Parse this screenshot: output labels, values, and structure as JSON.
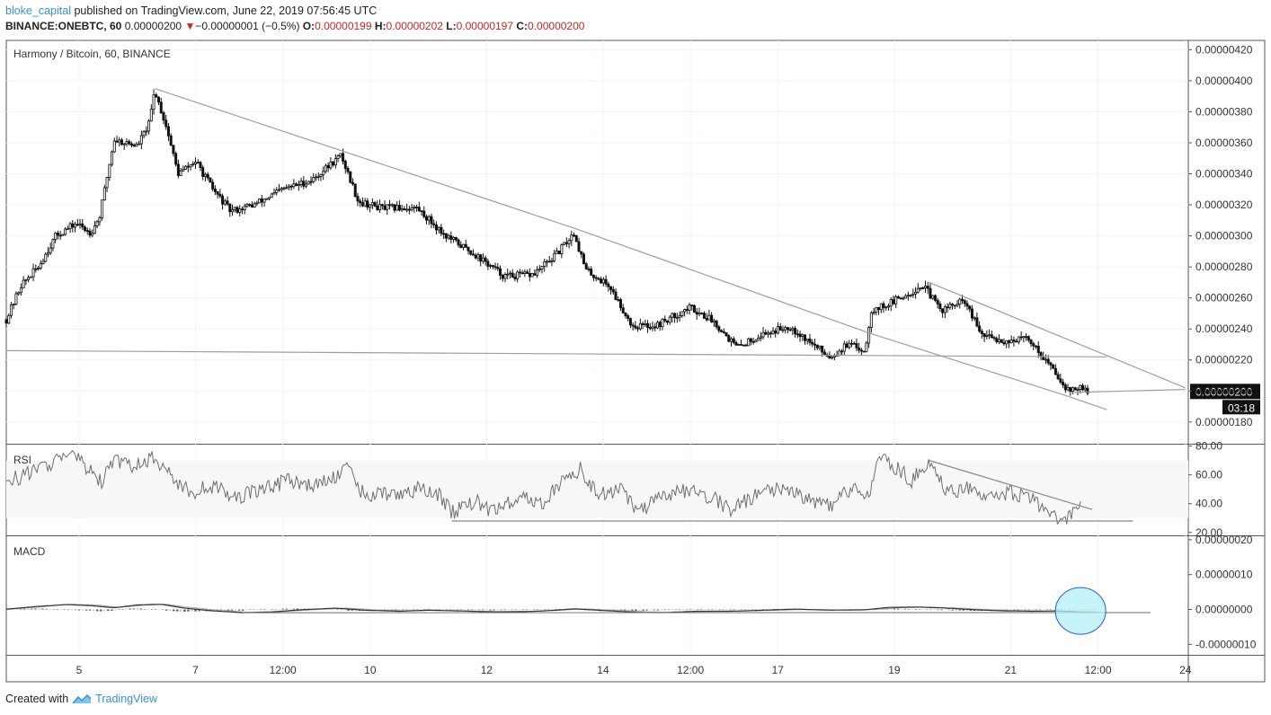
{
  "header": {
    "author": "bloke_capital",
    "published_text": "published on TradingView.com, June 22, 2019 07:56:45 UTC",
    "symbol": "BINANCE:ONEBTC, 60",
    "last_price": "0.00000200",
    "change": "−0.00000001 (−0.5%)",
    "open_label": "O:",
    "open": "0.00000199",
    "high_label": "H:",
    "high": "0.00000202",
    "low_label": "L:",
    "low": "0.00000197",
    "close_label": "C:",
    "close": "0.00000200",
    "down_arrow": "▼"
  },
  "footer": {
    "created_with": "Created with",
    "brand": "TradingView"
  },
  "colors": {
    "candle": "#111111",
    "trendline": "#9e9e9e",
    "rsi_line": "#6e6e6e",
    "macd_line": "#333333",
    "signal_line": "#aaaaaa",
    "hist_dark": "#555b66",
    "hist_light": "#c2c6cf",
    "circle_fill": "#b3f0f7",
    "circle_stroke": "#2a5bd7",
    "price_badge": "#111111"
  },
  "chart_data": [
    {
      "type": "candlestick",
      "title": "Harmony / Bitcoin, 60, BINANCE",
      "y_ticks": [
        "0.00000180",
        "0.00000200",
        "0.00000220",
        "0.00000240",
        "0.00000260",
        "0.00000280",
        "0.00000300",
        "0.00000320",
        "0.00000340",
        "0.00000360",
        "0.00000380",
        "0.00000400",
        "0.00000420"
      ],
      "ylim": [
        1.66e-06,
        4.26e-06
      ],
      "x_ticks": [
        "5",
        "7",
        "12:00",
        "10",
        "12",
        "14",
        "12:00",
        "17",
        "19",
        "21",
        "12:00",
        "24"
      ],
      "x_tick_days": [
        5,
        7,
        8.5,
        10,
        12,
        14,
        15.5,
        17,
        19,
        21,
        22.5,
        24
      ],
      "xlim": [
        3.75,
        24.05
      ],
      "price_path": [
        [
          3.75,
          2.46e-06
        ],
        [
          4.0,
          2.68e-06
        ],
        [
          4.3,
          2.8e-06
        ],
        [
          4.6,
          3e-06
        ],
        [
          4.95,
          3.08e-06
        ],
        [
          5.2,
          3.02e-06
        ],
        [
          5.35,
          3.12e-06
        ],
        [
          5.6,
          3.62e-06
        ],
        [
          5.8,
          3.6e-06
        ],
        [
          6.0,
          3.58e-06
        ],
        [
          6.2,
          3.72e-06
        ],
        [
          6.3,
          3.94e-06
        ],
        [
          6.5,
          3.7e-06
        ],
        [
          6.7,
          3.4e-06
        ],
        [
          7.0,
          3.48e-06
        ],
        [
          7.3,
          3.3e-06
        ],
        [
          7.6,
          3.16e-06
        ],
        [
          8.0,
          3.2e-06
        ],
        [
          8.5,
          3.3e-06
        ],
        [
          9.0,
          3.36e-06
        ],
        [
          9.5,
          3.52e-06
        ],
        [
          9.8,
          3.22e-06
        ],
        [
          10.2,
          3.18e-06
        ],
        [
          10.8,
          3.18e-06
        ],
        [
          11.3,
          3e-06
        ],
        [
          11.8,
          2.88e-06
        ],
        [
          12.3,
          2.74e-06
        ],
        [
          12.8,
          2.75e-06
        ],
        [
          13.2,
          2.88e-06
        ],
        [
          13.5,
          3.02e-06
        ],
        [
          13.7,
          2.78e-06
        ],
        [
          14.1,
          2.68e-06
        ],
        [
          14.5,
          2.42e-06
        ],
        [
          14.9,
          2.42e-06
        ],
        [
          15.5,
          2.54e-06
        ],
        [
          15.9,
          2.45e-06
        ],
        [
          16.3,
          2.28e-06
        ],
        [
          16.7,
          2.36e-06
        ],
        [
          17.2,
          2.42e-06
        ],
        [
          17.6,
          2.3e-06
        ],
        [
          17.9,
          2.22e-06
        ],
        [
          18.2,
          2.3e-06
        ],
        [
          18.5,
          2.26e-06
        ],
        [
          18.6,
          2.52e-06
        ],
        [
          18.9,
          2.56e-06
        ],
        [
          19.2,
          2.62e-06
        ],
        [
          19.5,
          2.68e-06
        ],
        [
          19.8,
          2.52e-06
        ],
        [
          20.2,
          2.58e-06
        ],
        [
          20.5,
          2.36e-06
        ],
        [
          20.9,
          2.32e-06
        ],
        [
          21.3,
          2.34e-06
        ],
        [
          21.6,
          2.2e-06
        ],
        [
          21.8,
          2.1e-06
        ],
        [
          22.0,
          2e-06
        ],
        [
          22.15,
          2.02e-06
        ],
        [
          22.32,
          2e-06
        ]
      ],
      "trendlines": [
        {
          "points": [
            [
              6.3,
              3.95e-06
            ],
            [
              13.5,
              3.05e-06
            ],
            [
              18.6,
              2.37e-06
            ],
            [
              21.95,
              1.97e-06
            ],
            [
              22.65,
              1.88e-06
            ]
          ]
        },
        {
          "points": [
            [
              3.75,
              2.26e-06
            ],
            [
              22.65,
              2.22e-06
            ]
          ]
        },
        {
          "points": [
            [
              19.6,
              2.7e-06
            ],
            [
              24.0,
              2.02e-06
            ]
          ]
        },
        {
          "points": [
            [
              22.0,
              1.99e-06
            ],
            [
              24.0,
              2.01e-06
            ]
          ]
        }
      ],
      "last_price_label": "0.00000200",
      "countdown": "03:18"
    },
    {
      "type": "line",
      "title": "RSI",
      "y_ticks": [
        "20.00",
        "40.00",
        "60.00",
        "80.00"
      ],
      "ylim": [
        18,
        81
      ],
      "band": [
        30,
        70
      ],
      "rsi_path": [
        [
          3.75,
          55
        ],
        [
          4.2,
          62
        ],
        [
          4.6,
          70
        ],
        [
          4.9,
          74
        ],
        [
          5.2,
          62
        ],
        [
          5.4,
          55
        ],
        [
          5.6,
          70
        ],
        [
          5.9,
          66
        ],
        [
          6.3,
          72
        ],
        [
          6.6,
          58
        ],
        [
          6.9,
          48
        ],
        [
          7.3,
          52
        ],
        [
          7.7,
          44
        ],
        [
          8.1,
          50
        ],
        [
          8.6,
          56
        ],
        [
          9.1,
          52
        ],
        [
          9.6,
          64
        ],
        [
          9.9,
          46
        ],
        [
          10.3,
          46
        ],
        [
          10.8,
          50
        ],
        [
          11.2,
          46
        ],
        [
          11.4,
          34
        ],
        [
          11.8,
          42
        ],
        [
          12.1,
          34
        ],
        [
          12.6,
          46
        ],
        [
          12.9,
          38
        ],
        [
          13.3,
          56
        ],
        [
          13.6,
          64
        ],
        [
          13.9,
          46
        ],
        [
          14.3,
          50
        ],
        [
          14.6,
          34
        ],
        [
          15.0,
          44
        ],
        [
          15.5,
          50
        ],
        [
          15.9,
          44
        ],
        [
          16.2,
          36
        ],
        [
          16.6,
          46
        ],
        [
          17.1,
          52
        ],
        [
          17.6,
          42
        ],
        [
          17.9,
          38
        ],
        [
          18.3,
          52
        ],
        [
          18.55,
          44
        ],
        [
          18.7,
          72
        ],
        [
          19.0,
          66
        ],
        [
          19.3,
          56
        ],
        [
          19.6,
          70
        ],
        [
          19.9,
          48
        ],
        [
          20.3,
          52
        ],
        [
          20.6,
          42
        ],
        [
          21.0,
          48
        ],
        [
          21.4,
          42
        ],
        [
          21.6,
          34
        ],
        [
          21.8,
          30
        ],
        [
          21.95,
          28
        ],
        [
          22.1,
          34
        ],
        [
          22.2,
          38
        ]
      ],
      "trendlines": [
        {
          "points": [
            [
              11.4,
              28
            ],
            [
              23.1,
              28
            ]
          ]
        },
        {
          "points": [
            [
              19.6,
              70
            ],
            [
              22.4,
              36
            ]
          ]
        }
      ]
    },
    {
      "type": "line",
      "title": "MACD",
      "y_ticks": [
        "-0.00000010",
        "0.00000000",
        "0.00000010",
        "0.00000020"
      ],
      "ylim": [
        -1.3e-07,
        2.1e-07
      ],
      "macd_path": [
        [
          3.75,
          1e-09
        ],
        [
          4.3,
          9e-09
        ],
        [
          4.8,
          1.4e-08
        ],
        [
          5.2,
          1.1e-08
        ],
        [
          5.6,
          5e-09
        ],
        [
          6.0,
          1.3e-08
        ],
        [
          6.4,
          1.5e-08
        ],
        [
          6.8,
          4e-09
        ],
        [
          7.3,
          -4e-09
        ],
        [
          7.8,
          -9e-09
        ],
        [
          8.3,
          -7e-09
        ],
        [
          8.8,
          -1e-09
        ],
        [
          9.4,
          4e-09
        ],
        [
          9.9,
          -2e-09
        ],
        [
          10.5,
          -5e-09
        ],
        [
          11.0,
          -2e-09
        ],
        [
          11.5,
          -4e-09
        ],
        [
          12.1,
          -7e-09
        ],
        [
          12.7,
          -6e-09
        ],
        [
          13.2,
          -2e-09
        ],
        [
          13.5,
          2e-09
        ],
        [
          14.0,
          -3e-09
        ],
        [
          14.6,
          -8e-09
        ],
        [
          15.0,
          -9e-09
        ],
        [
          15.6,
          -5e-09
        ],
        [
          16.2,
          -5e-09
        ],
        [
          16.8,
          -2e-09
        ],
        [
          17.3,
          1e-09
        ],
        [
          17.9,
          -2e-09
        ],
        [
          18.5,
          -1e-09
        ],
        [
          18.9,
          6e-09
        ],
        [
          19.4,
          7e-09
        ],
        [
          19.9,
          4e-09
        ],
        [
          20.4,
          -1e-09
        ],
        [
          20.9,
          -4e-09
        ],
        [
          21.4,
          -5e-09
        ],
        [
          21.8,
          -4e-09
        ],
        [
          22.2,
          -7e-09
        ],
        [
          22.5,
          -8e-09
        ]
      ],
      "signal_path": [
        [
          3.75,
          0.0
        ],
        [
          4.3,
          7e-09
        ],
        [
          4.8,
          1.5e-08
        ],
        [
          5.3,
          1.3e-08
        ],
        [
          5.7,
          6e-09
        ],
        [
          6.1,
          1.2e-08
        ],
        [
          6.5,
          1.5e-08
        ],
        [
          6.9,
          6e-09
        ],
        [
          7.4,
          -2e-09
        ],
        [
          7.9,
          -8e-09
        ],
        [
          8.5,
          -6e-09
        ],
        [
          9.0,
          -1e-09
        ],
        [
          9.6,
          4e-09
        ],
        [
          10.1,
          -1e-09
        ],
        [
          10.6,
          -4e-09
        ],
        [
          11.1,
          -2e-09
        ],
        [
          11.7,
          -4e-09
        ],
        [
          12.3,
          -6e-09
        ],
        [
          12.9,
          -5e-09
        ],
        [
          13.4,
          -1e-09
        ],
        [
          13.7,
          2e-09
        ],
        [
          14.2,
          -2e-09
        ],
        [
          14.8,
          -7e-09
        ],
        [
          15.3,
          -8e-09
        ],
        [
          15.9,
          -5e-09
        ],
        [
          16.5,
          -4e-09
        ],
        [
          17.0,
          -2e-09
        ],
        [
          17.5,
          0.0
        ],
        [
          18.1,
          -1e-09
        ],
        [
          18.7,
          0.0
        ],
        [
          19.1,
          5e-09
        ],
        [
          19.6,
          7e-09
        ],
        [
          20.1,
          4e-09
        ],
        [
          20.6,
          0.0
        ],
        [
          21.1,
          -3e-09
        ],
        [
          21.6,
          -5e-09
        ],
        [
          22.0,
          -5e-09
        ],
        [
          22.5,
          -8e-09
        ]
      ],
      "trendlines": [
        {
          "points": [
            [
              7.8,
              -9.2e-09
            ],
            [
              23.4,
              -8.9e-09
            ]
          ]
        }
      ],
      "highlight_circle": {
        "x": 22.2,
        "y": -4e-09
      }
    }
  ]
}
